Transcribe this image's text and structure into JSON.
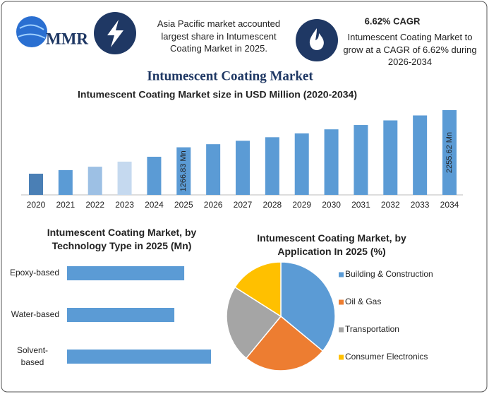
{
  "header": {
    "logo": "MMR",
    "note": "Asia Pacific market accounted largest share in Intumescent Coating Market in 2025.",
    "cagr_title": "6.62% CAGR",
    "cagr_text": "Intumescent Coating Market to grow at a CAGR of 6.62% during 2026-2034"
  },
  "chart_data": [
    {
      "type": "bar",
      "title": "Intumescent Coating Market",
      "subtitle": "Intumescent Coating Market size in USD Million (2020-2034)",
      "categories": [
        "2020",
        "2021",
        "2022",
        "2023",
        "2024",
        "2025",
        "2026",
        "2027",
        "2028",
        "2029",
        "2030",
        "2031",
        "2032",
        "2033",
        "2034"
      ],
      "values": [
        564,
        660,
        750,
        885,
        1015,
        1266.83,
        1350,
        1440,
        1535,
        1637,
        1745,
        1860,
        1983,
        2115,
        2255.62
      ],
      "value_labels": [
        null,
        null,
        null,
        null,
        null,
        "1266.83 Mn",
        null,
        null,
        null,
        null,
        null,
        null,
        null,
        null,
        "2255.62 Mn"
      ],
      "colors": [
        "#4a7fb5",
        "#5b9bd5",
        "#9dc0e4",
        "#c5d9ef",
        "#5b9bd5",
        "#5b9bd5",
        "#5b9bd5",
        "#5b9bd5",
        "#5b9bd5",
        "#5b9bd5",
        "#5b9bd5",
        "#5b9bd5",
        "#5b9bd5",
        "#5b9bd5",
        "#5b9bd5"
      ]
    },
    {
      "type": "hbar",
      "title": "Intumescent Coating Market, by Technology Type in 2025 (Mn)",
      "categories": [
        "Epoxy-based",
        "Water-based",
        "Solvent-based"
      ],
      "values": [
        403,
        369,
        495
      ],
      "color": "#5b9bd5"
    },
    {
      "type": "pie",
      "title": "Intumescent Coating Market, by Application In 2025 (%)",
      "categories": [
        "Building & Construction",
        "Oil & Gas",
        "Transportation",
        "Consumer Electronics"
      ],
      "values": [
        36,
        25,
        23,
        16
      ],
      "colors": [
        "#5b9bd5",
        "#ed7d31",
        "#a5a5a5",
        "#ffc000"
      ],
      "legend": "right"
    }
  ]
}
